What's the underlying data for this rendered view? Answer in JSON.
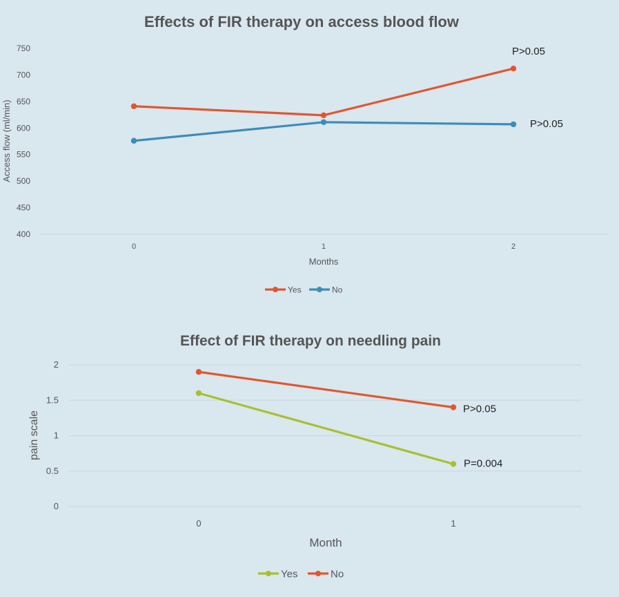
{
  "colors": {
    "background": "#d9e7ef",
    "gridline": "#c7d7e0",
    "text": "#555555",
    "title": "#555555",
    "orange": "#e2562f",
    "blue": "#3d8db8",
    "green": "#a9bf2f"
  },
  "chart_data": [
    {
      "type": "line",
      "title": "Effects of FIR therapy on access blood flow",
      "xlabel": "Months",
      "ylabel": "Access flow (ml/min)",
      "categories": [
        "0",
        "1",
        "2"
      ],
      "yticks": [
        "750",
        "700",
        "650",
        "600",
        "550",
        "500",
        "450",
        "400"
      ],
      "ylim": [
        400,
        750
      ],
      "grid": "horizontal baseline only",
      "legend_position": "bottom-center",
      "series": [
        {
          "name": "Yes",
          "color": "#e2562f",
          "values": [
            641,
            624,
            712
          ]
        },
        {
          "name": "No",
          "color": "#3d8db8",
          "values": [
            576,
            611,
            607
          ]
        }
      ],
      "annotations": [
        {
          "text": "P>0.05",
          "series": "Yes",
          "category": "2"
        },
        {
          "text": "P>0.05",
          "series": "No",
          "category": "2"
        }
      ]
    },
    {
      "type": "line",
      "title": "Effect of FIR therapy on needling pain",
      "xlabel": "Month",
      "ylabel": "pain scale",
      "categories": [
        "0",
        "1"
      ],
      "yticks": [
        "2",
        "1.5",
        "1",
        "0.5",
        "0"
      ],
      "ylim": [
        0,
        2
      ],
      "grid": "horizontal",
      "legend_position": "bottom-center",
      "series": [
        {
          "name": "Yes",
          "color": "#a9bf2f",
          "values": [
            1.6,
            0.6
          ]
        },
        {
          "name": "No",
          "color": "#e2562f",
          "values": [
            1.9,
            1.4
          ]
        }
      ],
      "annotations": [
        {
          "text": "P>0.05",
          "series": "No",
          "category": "1"
        },
        {
          "text": "P=0.004",
          "series": "Yes",
          "category": "1"
        }
      ]
    }
  ]
}
